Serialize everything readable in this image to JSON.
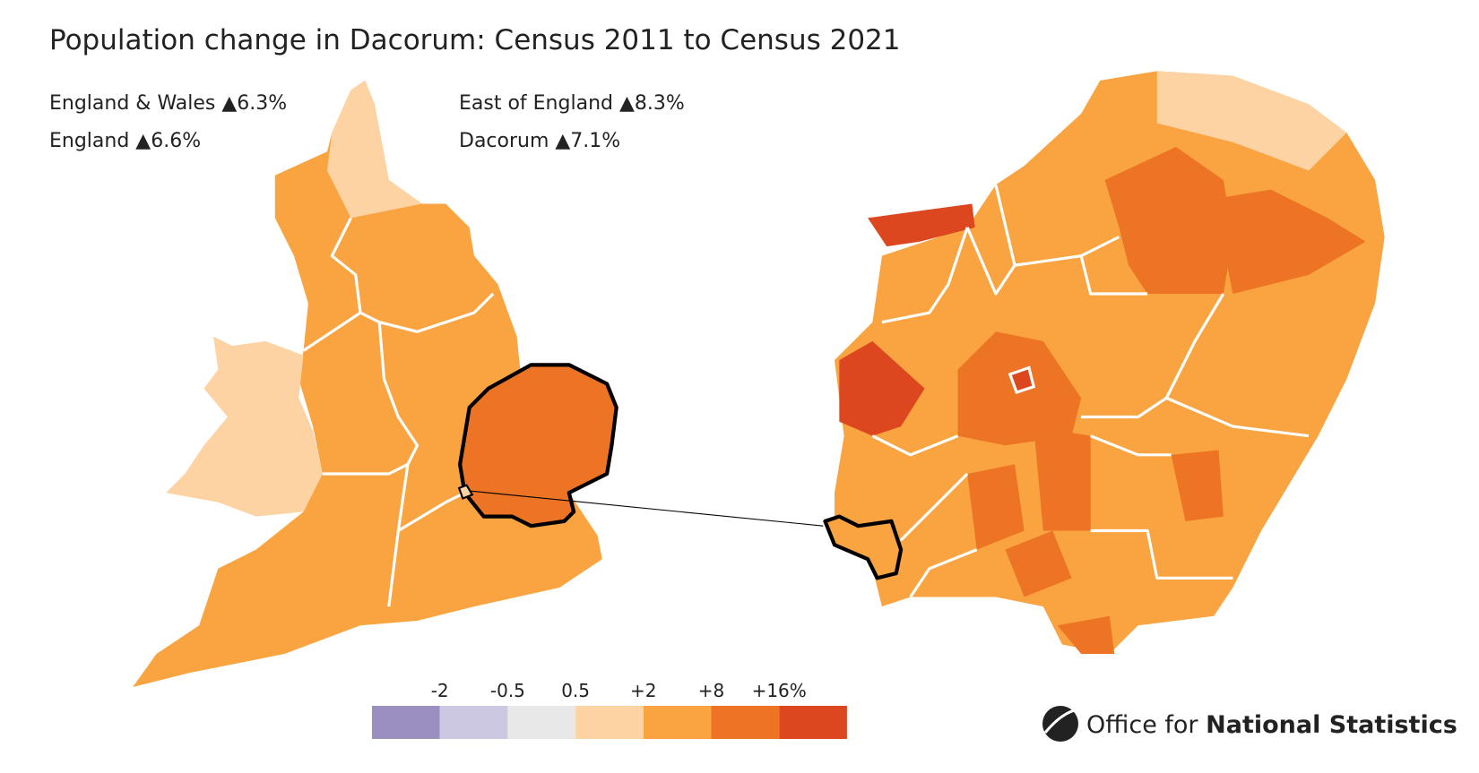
{
  "header": {
    "title": "Population change in Dacorum: Census 2011 to Census 2021"
  },
  "stats": [
    "England & Wales ▲6.3%",
    "England ▲6.6%",
    "East of England ▲8.3%",
    "Dacorum ▲7.1%"
  ],
  "legend": {
    "labels": [
      "-2",
      "-0.5",
      "0.5",
      "+2",
      "+8",
      "+16%"
    ],
    "colors": [
      "#9b8fc0",
      "#cdc8e2",
      "#e8e8e8",
      "#fed3a4",
      "#f9a440",
      "#ec7424",
      "#dc4720"
    ]
  },
  "logo": {
    "regular": "Office for",
    "bold": "National Statistics"
  }
}
